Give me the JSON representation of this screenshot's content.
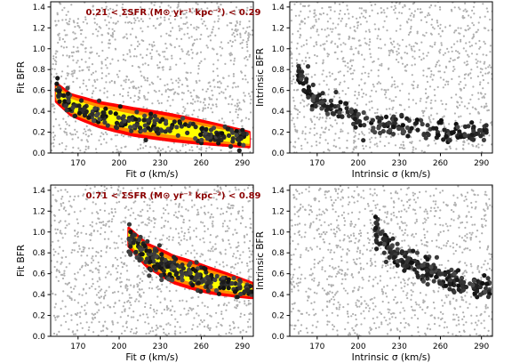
{
  "chart_data": [
    {
      "type": "scatter",
      "panel": "top-left",
      "xlabel": "Fit σ (km/s)",
      "ylabel": "Fit BFR",
      "annotation": "0.21 < ΣSFR (M⊙ yr⁻¹ kpc⁻²) < 0.29",
      "xlim": [
        150,
        298
      ],
      "ylim": [
        0,
        1.45
      ],
      "xticks": [
        "170",
        "200",
        "230",
        "260",
        "290"
      ],
      "yticks": [
        "0.0",
        "0.2",
        "0.4",
        "0.6",
        "0.8",
        "1.0",
        "1.2",
        "1.4"
      ],
      "background_color": "#b0b0b0",
      "highlight_color": "#111111",
      "contours": [
        "#ff0000",
        "#ff8c00",
        "#ffff00"
      ],
      "highlight_trend": [
        [
          154,
          0.58
        ],
        [
          165,
          0.46
        ],
        [
          185,
          0.37
        ],
        [
          210,
          0.3
        ],
        [
          240,
          0.24
        ],
        [
          265,
          0.19
        ],
        [
          295,
          0.13
        ]
      ],
      "highlight_count": 230
    },
    {
      "type": "scatter",
      "panel": "top-right",
      "xlabel": "Intrinsic σ (km/s)",
      "ylabel": "Intrinsic BFR",
      "xlim": [
        150,
        298
      ],
      "ylim": [
        0,
        1.45
      ],
      "xticks": [
        "170",
        "200",
        "230",
        "260",
        "290"
      ],
      "yticks": [
        "0.0",
        "0.2",
        "0.4",
        "0.6",
        "0.8",
        "1.0",
        "1.2",
        "1.4"
      ],
      "background_color": "#b0b0b0",
      "highlight_color": "#111111",
      "highlight_trend": [
        [
          156,
          0.8
        ],
        [
          165,
          0.55
        ],
        [
          180,
          0.43
        ],
        [
          200,
          0.32
        ],
        [
          230,
          0.25
        ],
        [
          260,
          0.2
        ],
        [
          295,
          0.17
        ]
      ],
      "highlight_count": 230
    },
    {
      "type": "scatter",
      "panel": "bottom-left",
      "xlabel": "Fit σ (km/s)",
      "ylabel": "Fit BFR",
      "annotation": "0.71 < ΣSFR (M⊙ yr⁻¹ kpc⁻²) < 0.89",
      "xlim": [
        150,
        298
      ],
      "ylim": [
        0,
        1.45
      ],
      "xticks": [
        "170",
        "200",
        "230",
        "260",
        "290"
      ],
      "yticks": [
        "0.0",
        "0.2",
        "0.4",
        "0.6",
        "0.8",
        "1.0",
        "1.2",
        "1.4"
      ],
      "background_color": "#b0b0b0",
      "highlight_color": "#111111",
      "contours": [
        "#ff0000",
        "#ff8c00",
        "#ffff00"
      ],
      "highlight_trend": [
        [
          207,
          0.95
        ],
        [
          220,
          0.78
        ],
        [
          240,
          0.64
        ],
        [
          265,
          0.54
        ],
        [
          297,
          0.44
        ]
      ],
      "highlight_count": 230
    },
    {
      "type": "scatter",
      "panel": "bottom-right",
      "xlabel": "Intrinsic σ (km/s)",
      "ylabel": "Intrinsic BFR",
      "xlim": [
        150,
        298
      ],
      "ylim": [
        0,
        1.45
      ],
      "xticks": [
        "170",
        "200",
        "230",
        "260",
        "290"
      ],
      "yticks": [
        "0.0",
        "0.2",
        "0.4",
        "0.6",
        "0.8",
        "1.0",
        "1.2",
        "1.4"
      ],
      "background_color": "#b0b0b0",
      "highlight_color": "#111111",
      "highlight_trend": [
        [
          212,
          1.02
        ],
        [
          225,
          0.82
        ],
        [
          245,
          0.65
        ],
        [
          270,
          0.53
        ],
        [
          297,
          0.45
        ]
      ],
      "highlight_count": 230
    }
  ]
}
